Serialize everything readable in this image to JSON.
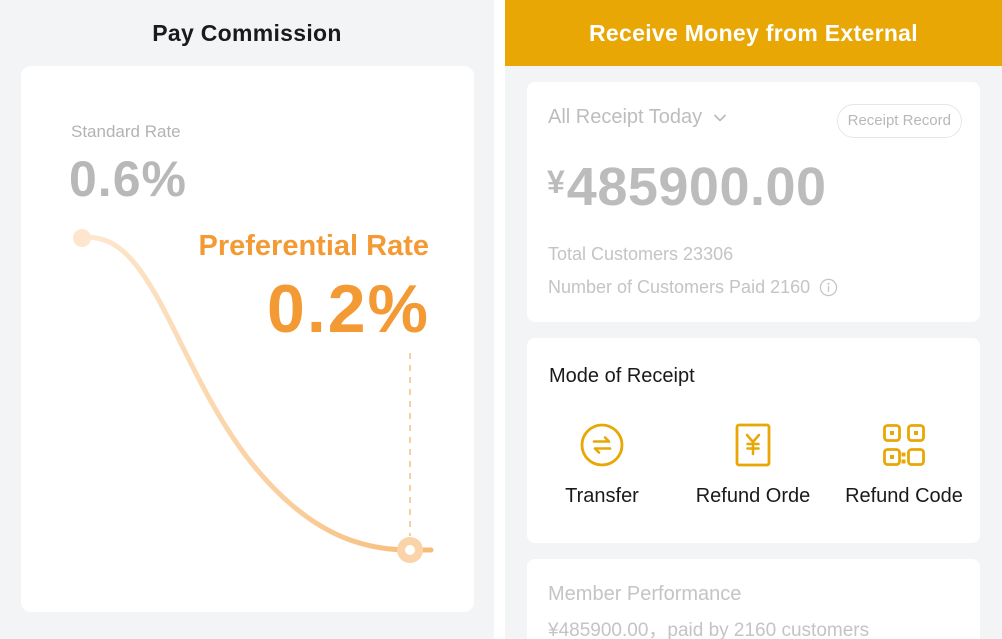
{
  "left_panel": {
    "title": "Pay Commission",
    "standard_rate": {
      "label": "Standard Rate",
      "value": "0.6%"
    },
    "preferential_rate": {
      "label": "Preferential Rate",
      "value": "0.2%"
    }
  },
  "right_panel": {
    "header_title": "Receive Money from External",
    "receipt": {
      "period_label": "All Receipt Today",
      "record_button": "Receipt Record",
      "currency_symbol": "¥",
      "amount": "485900.00",
      "total_customers": "Total Customers 23306",
      "paid_customers": "Number of Customers Paid 2160"
    },
    "mode": {
      "title": "Mode of Receipt",
      "items": [
        {
          "label": "Transfer",
          "icon": "transfer-icon"
        },
        {
          "label": "Refund Orde",
          "icon": "yen-receipt-icon"
        },
        {
          "label": "Refund Code",
          "icon": "qr-code-icon"
        }
      ]
    },
    "member": {
      "title": "Member Performance",
      "subtitle": "¥485900.00，paid by 2160 customers"
    }
  },
  "colors": {
    "accent": "#e8a705",
    "orange": "#f39a35",
    "curve_light": "#fde8cf",
    "background": "#f3f4f6"
  }
}
